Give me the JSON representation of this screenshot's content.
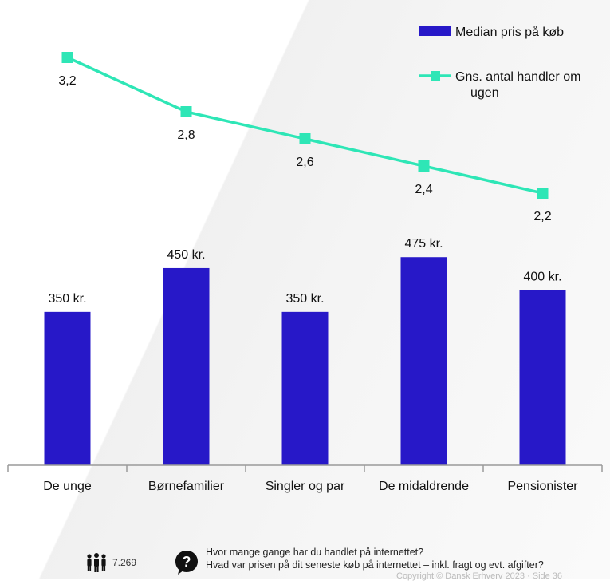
{
  "chart_data": {
    "type": "bar",
    "categories": [
      "De unge",
      "Børnefamilier",
      "Singler og par",
      "De midaldrende",
      "Pensionister"
    ],
    "series": [
      {
        "name": "Median pris på køb",
        "type": "bar",
        "color": "#2718c8",
        "values": [
          350,
          450,
          350,
          475,
          400
        ],
        "labels": [
          "350 kr.",
          "450 kr.",
          "350 kr.",
          "475 kr.",
          "400 kr."
        ]
      },
      {
        "name": "Gns. antal handler om ugen",
        "type": "line",
        "color": "#2ee6b6",
        "values": [
          3.2,
          2.8,
          2.6,
          2.4,
          2.2
        ],
        "labels": [
          "3,2",
          "2,8",
          "2,6",
          "2,4",
          "2,2"
        ]
      }
    ],
    "legend": {
      "position": "top-right",
      "items": [
        "Median pris på køb",
        "Gns. antal handler om ugen"
      ]
    },
    "grid": false
  },
  "footer": {
    "respondents": "7.269",
    "respondents_icon": "people-icon",
    "question_icon": "question-bubble-icon",
    "question_1": "Hvor mange gange har du  handlet på internettet?",
    "question_2": "Hvad var prisen på dit seneste køb på internettet – inkl. fragt og evt. afgifter?",
    "copyright": "Copyright © Dansk Erhverv 2023 · Side 36"
  }
}
